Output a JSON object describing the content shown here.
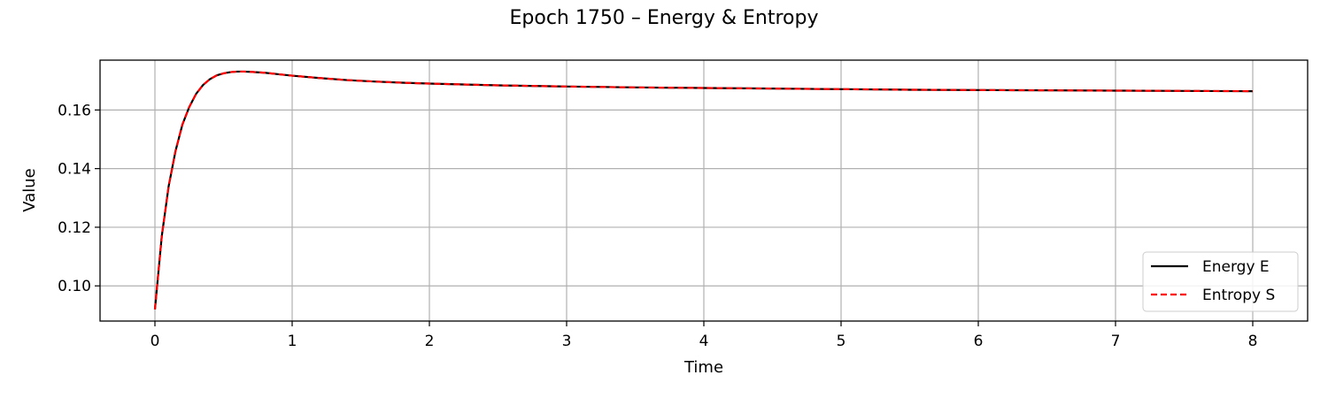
{
  "chart_data": {
    "type": "line",
    "title": "Epoch 1750 – Energy & Entropy",
    "xlabel": "Time",
    "ylabel": "Value",
    "xlim": [
      -0.4,
      8.4
    ],
    "ylim": [
      0.088,
      0.177
    ],
    "x_ticks": [
      0,
      1,
      2,
      3,
      4,
      5,
      6,
      7,
      8
    ],
    "x_tick_labels": [
      "0",
      "1",
      "2",
      "3",
      "4",
      "5",
      "6",
      "7",
      "8"
    ],
    "y_ticks": [
      0.1,
      0.12,
      0.14,
      0.16
    ],
    "y_tick_labels": [
      "0.10",
      "0.12",
      "0.14",
      "0.16"
    ],
    "grid": true,
    "legend_position": "bottom-right",
    "series": [
      {
        "name": "Energy E",
        "color": "#000000",
        "style": "solid",
        "x": [
          0,
          0.05,
          0.1,
          0.15,
          0.2,
          0.25,
          0.3,
          0.35,
          0.4,
          0.45,
          0.5,
          0.55,
          0.6,
          0.65,
          0.7,
          0.8,
          0.9,
          1.0,
          1.2,
          1.4,
          1.6,
          1.8,
          2.0,
          2.5,
          3.0,
          3.5,
          4.0,
          4.5,
          5.0,
          5.5,
          6.0,
          6.5,
          7.0,
          7.5,
          8.0
        ],
        "values": [
          0.092,
          0.117,
          0.134,
          0.146,
          0.155,
          0.161,
          0.1655,
          0.1685,
          0.1705,
          0.1718,
          0.1725,
          0.1729,
          0.1731,
          0.1731,
          0.173,
          0.1727,
          0.1722,
          0.1717,
          0.1709,
          0.1702,
          0.1697,
          0.1693,
          0.169,
          0.1684,
          0.168,
          0.1677,
          0.1675,
          0.1673,
          0.1671,
          0.1669,
          0.1668,
          0.1667,
          0.1666,
          0.1665,
          0.1664
        ]
      },
      {
        "name": "Entropy S",
        "color": "#ff0000",
        "style": "dashed",
        "x": [
          0,
          0.05,
          0.1,
          0.15,
          0.2,
          0.25,
          0.3,
          0.35,
          0.4,
          0.45,
          0.5,
          0.55,
          0.6,
          0.65,
          0.7,
          0.8,
          0.9,
          1.0,
          1.2,
          1.4,
          1.6,
          1.8,
          2.0,
          2.5,
          3.0,
          3.5,
          4.0,
          4.5,
          5.0,
          5.5,
          6.0,
          6.5,
          7.0,
          7.5,
          8.0
        ],
        "values": [
          0.092,
          0.117,
          0.134,
          0.146,
          0.155,
          0.161,
          0.1655,
          0.1685,
          0.1705,
          0.1718,
          0.1725,
          0.1729,
          0.1731,
          0.1731,
          0.173,
          0.1727,
          0.1722,
          0.1717,
          0.1709,
          0.1702,
          0.1697,
          0.1693,
          0.169,
          0.1684,
          0.168,
          0.1677,
          0.1675,
          0.1673,
          0.1671,
          0.1669,
          0.1668,
          0.1667,
          0.1666,
          0.1665,
          0.1664
        ]
      }
    ]
  }
}
